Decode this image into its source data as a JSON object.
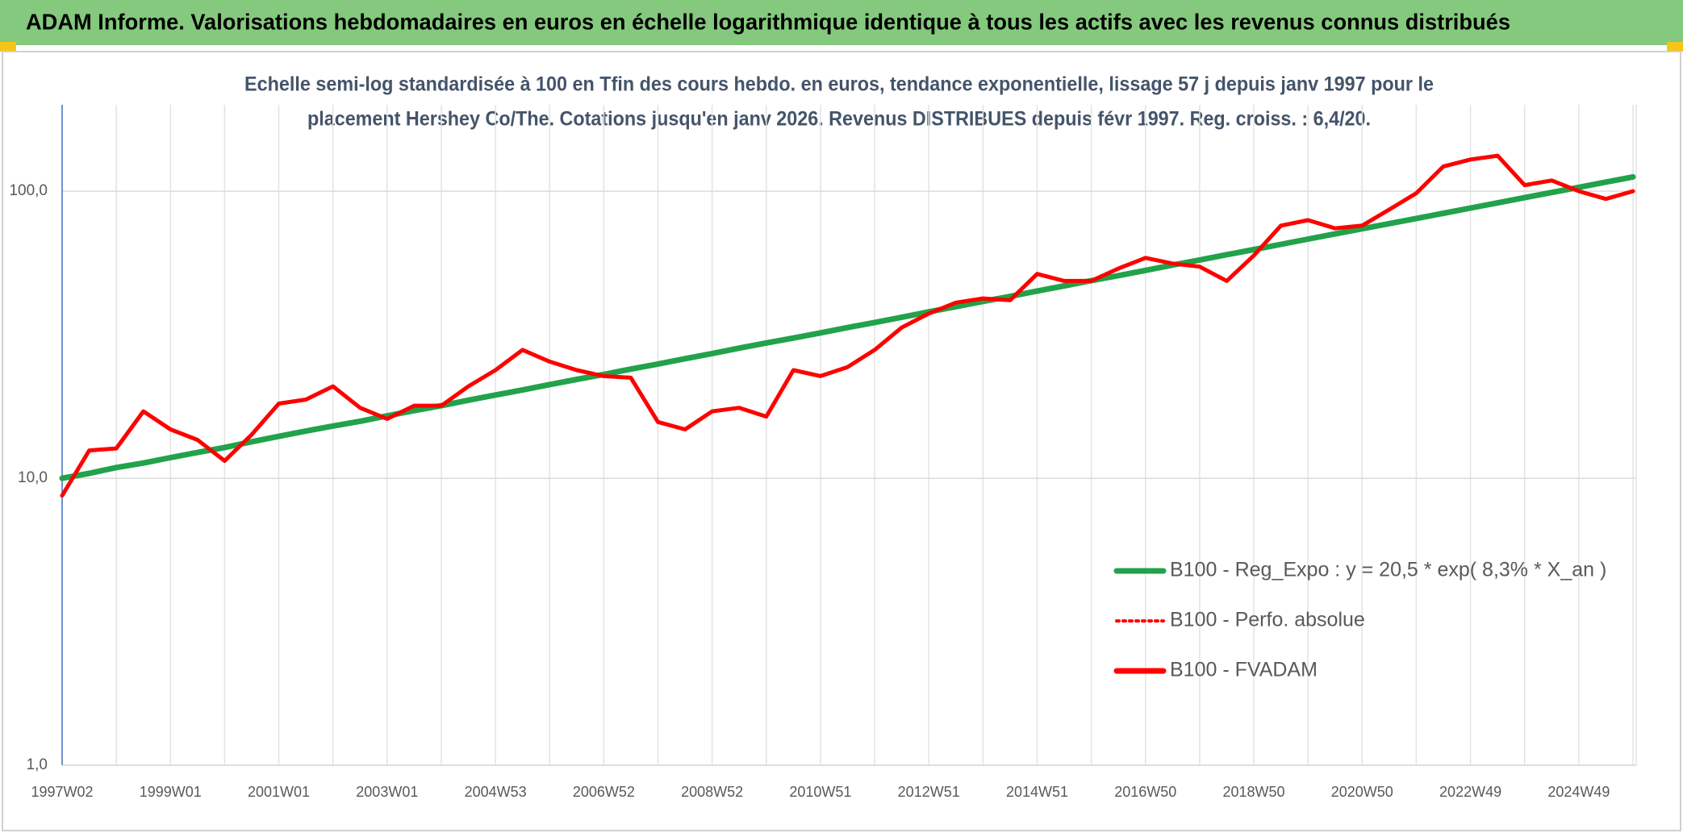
{
  "chart_data": {
    "type": "line",
    "title": "ADAM Informe. Valorisations hebdomadaires en euros en échelle logarithmique identique à tous les actifs avec les revenus connus distribués",
    "subtitle": [
      "Echelle semi-log standardisée à 100 en Tfin des cours hebdo. en euros, tendance exponentielle, lissage 57 j depuis janv 1997 pour le",
      "placement Hershey Co/The. Cotations jusqu'en janv 2026. Revenus DISTRIBUES depuis févr 1997. Reg. croiss. : 6,4/20."
    ],
    "categories": [
      "1997W02",
      null,
      null,
      null,
      "1999W01",
      null,
      null,
      null,
      "2001W01",
      null,
      null,
      null,
      "2003W01",
      null,
      null,
      null,
      "2004W53",
      null,
      null,
      null,
      "2006W52",
      null,
      null,
      null,
      "2008W52",
      null,
      null,
      null,
      "2010W51",
      null,
      null,
      null,
      "2012W51",
      null,
      null,
      null,
      "2014W51",
      null,
      null,
      null,
      "2016W50",
      null,
      null,
      null,
      "2018W50",
      null,
      null,
      null,
      "2020W50",
      null,
      null,
      null,
      "2022W49",
      null,
      null,
      null,
      "2024W49",
      null,
      null
    ],
    "series": [
      {
        "name": "B100 - Reg_Expo : y = 20,5 * exp( 8,3% *  X_an )",
        "color": "#22a24a",
        "style": "solid",
        "values": [
          10.0,
          10.4,
          10.9,
          11.3,
          11.8,
          12.3,
          12.8,
          13.4,
          14.0,
          14.6,
          15.2,
          15.8,
          16.5,
          17.2,
          17.9,
          18.7,
          19.5,
          20.3,
          21.2,
          22.1,
          23.0,
          24.0,
          25.0,
          26.1,
          27.2,
          28.4,
          29.6,
          30.8,
          32.1,
          33.5,
          34.9,
          36.4,
          38.0,
          39.6,
          41.3,
          43.0,
          44.9,
          46.8,
          48.8,
          50.8,
          53.0,
          55.3,
          57.6,
          60.1,
          62.6,
          65.3,
          68.1,
          71.0,
          74.0,
          77.1,
          80.4,
          83.8,
          87.4,
          91.1,
          95.0,
          99.0,
          103.2,
          107.6,
          112.2
        ]
      },
      {
        "name": "B100 - Perfo. absolue",
        "color": "#ff0000",
        "style": "dotted",
        "values": [
          8.7,
          12.5,
          12.7,
          17.1,
          14.8,
          13.6,
          11.5,
          14.2,
          18.2,
          18.8,
          20.9,
          17.6,
          16.1,
          17.9,
          17.9,
          20.9,
          23.8,
          28,
          25.5,
          23.8,
          22.7,
          22.4,
          15.7,
          14.8,
          17.1,
          17.6,
          16.4,
          23.8,
          22.7,
          24.4,
          28,
          33.5,
          37.5,
          40.9,
          42.3,
          41.7,
          51.5,
          48.7,
          48.7,
          53.8,
          58.6,
          56,
          54.6,
          48.7,
          59.7,
          75.9,
          79.3,
          74.3,
          75.9,
          86.3,
          98.4,
          122,
          129,
          133,
          105,
          109,
          100,
          94,
          100
        ]
      },
      {
        "name": "B100 - FVADAM",
        "color": "#ff0000",
        "style": "solid",
        "values": [
          8.7,
          12.5,
          12.7,
          17.1,
          14.8,
          13.6,
          11.5,
          14.2,
          18.2,
          18.8,
          20.9,
          17.6,
          16.1,
          17.9,
          17.9,
          20.9,
          23.8,
          28,
          25.5,
          23.8,
          22.7,
          22.4,
          15.7,
          14.8,
          17.1,
          17.6,
          16.4,
          23.8,
          22.7,
          24.4,
          28,
          33.5,
          37.5,
          40.9,
          42.3,
          41.7,
          51.5,
          48.7,
          48.7,
          53.8,
          58.6,
          56,
          54.6,
          48.7,
          59.7,
          75.9,
          79.3,
          74.3,
          75.9,
          86.3,
          98.4,
          122,
          129,
          133,
          105,
          109,
          100,
          94,
          100
        ]
      }
    ],
    "ylim": [
      1,
      200
    ],
    "yticks": [
      {
        "value": 1,
        "label": "1,0"
      },
      {
        "value": 10,
        "label": "10,0"
      },
      {
        "value": 100,
        "label": "100,0"
      }
    ],
    "log_y": true,
    "grid": true,
    "legend": "lower right"
  }
}
